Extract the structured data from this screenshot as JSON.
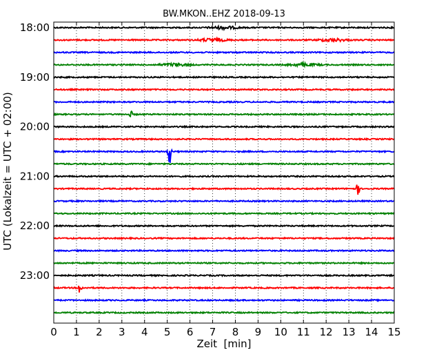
{
  "chart_data": {
    "type": "line",
    "title": "BW.MKON..EHZ 2018-09-13",
    "xlabel": "Zeit  [min]",
    "ylabel": "UTC (Lokalzeit = UTC + 02:00)",
    "xlim": [
      0,
      15
    ],
    "x_ticks": [
      "0",
      "1",
      "2",
      "3",
      "4",
      "5",
      "6",
      "7",
      "8",
      "9",
      "10",
      "11",
      "12",
      "13",
      "14",
      "15"
    ],
    "y_tick_labels": [
      "18:00",
      "19:00",
      "20:00",
      "21:00",
      "22:00",
      "23:00"
    ],
    "grid": "vertical-dotted",
    "colors": {
      "black": "#000000",
      "red": "#ff0000",
      "blue": "#0000ff",
      "green": "#008000"
    },
    "series": [
      {
        "start": "18:00",
        "color": "black",
        "events": [
          {
            "x": 7.5,
            "amp": 2
          }
        ]
      },
      {
        "start": "18:15",
        "color": "red",
        "events": [
          {
            "x": 7.0,
            "amp": 2
          },
          {
            "x": 12.3,
            "amp": 2
          }
        ]
      },
      {
        "start": "18:30",
        "color": "blue",
        "events": []
      },
      {
        "start": "18:45",
        "color": "green",
        "events": [
          {
            "x": 5.3,
            "amp": 2
          },
          {
            "x": 11.0,
            "amp": 2
          }
        ]
      },
      {
        "start": "19:00",
        "color": "black",
        "events": []
      },
      {
        "start": "19:15",
        "color": "red",
        "events": []
      },
      {
        "start": "19:30",
        "color": "blue",
        "events": []
      },
      {
        "start": "19:45",
        "color": "green",
        "events": [
          {
            "x": 3.4,
            "amp": 6
          }
        ]
      },
      {
        "start": "20:00",
        "color": "black",
        "events": []
      },
      {
        "start": "20:15",
        "color": "red",
        "events": []
      },
      {
        "start": "20:30",
        "color": "blue",
        "events": [
          {
            "x": 5.1,
            "amp": 22
          }
        ]
      },
      {
        "start": "20:45",
        "color": "green",
        "events": []
      },
      {
        "start": "21:00",
        "color": "black",
        "events": []
      },
      {
        "start": "21:15",
        "color": "red",
        "events": [
          {
            "x": 13.4,
            "amp": 10
          }
        ]
      },
      {
        "start": "21:30",
        "color": "blue",
        "events": []
      },
      {
        "start": "21:45",
        "color": "green",
        "events": []
      },
      {
        "start": "22:00",
        "color": "black",
        "events": []
      },
      {
        "start": "22:15",
        "color": "red",
        "events": []
      },
      {
        "start": "22:30",
        "color": "blue",
        "events": []
      },
      {
        "start": "22:45",
        "color": "green",
        "events": []
      },
      {
        "start": "23:00",
        "color": "black",
        "events": []
      },
      {
        "start": "23:15",
        "color": "red",
        "events": [
          {
            "x": 1.15,
            "amp": 12
          }
        ]
      },
      {
        "start": "23:30",
        "color": "blue",
        "events": []
      },
      {
        "start": "23:45",
        "color": "green",
        "events": []
      }
    ]
  }
}
